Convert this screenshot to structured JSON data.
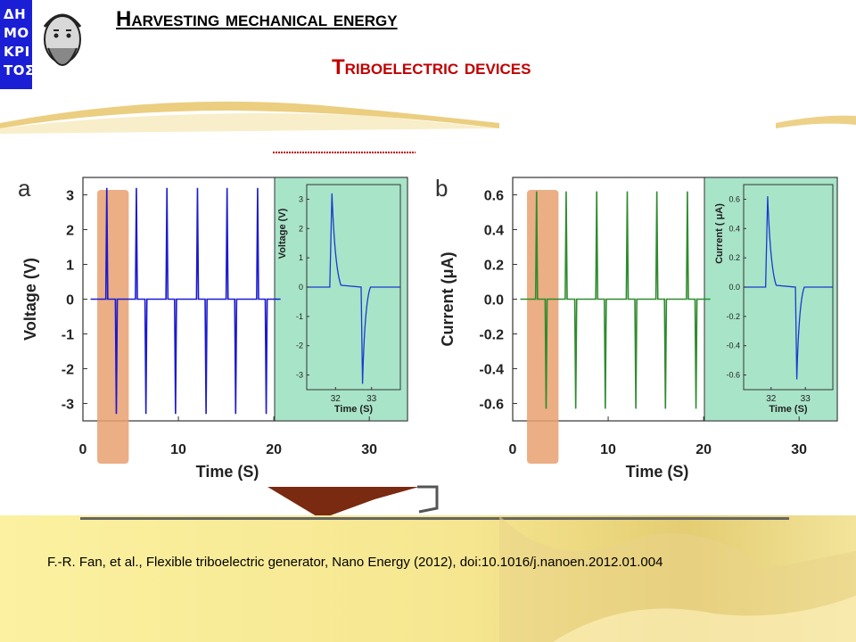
{
  "header": {
    "title": "Harvesting mechanical energy",
    "subtitle": "Triboelectric devices",
    "logo_letters": [
      "ΔΗ",
      "ΜΟ",
      "ΚΡΙ",
      "ΤΟΣ"
    ]
  },
  "citation": "F.-R. Fan, et al., Flexible triboelectric generator, Nano Energy (2012), doi:10.1016/j.nanoen.2012.01.004",
  "colors": {
    "logo_blue": "#1a1fd6",
    "subtitle_red": "#c00000",
    "voltage": "#1a1ad0",
    "current": "#2e8b2e",
    "highlight": "#e8a070",
    "inset_bg": "#a8e4c8"
  },
  "chart_data": [
    {
      "panel": "a",
      "type": "line",
      "xlabel": "Time (S)",
      "ylabel": "Voltage (V)",
      "xlim": [
        0,
        34
      ],
      "ylim": [
        -3.5,
        3.5
      ],
      "xticks": [
        0,
        10,
        20,
        30
      ],
      "yticks": [
        3,
        2,
        1,
        0,
        -1,
        -2,
        -3
      ],
      "peak_times": [
        2.5,
        5.6,
        8.8,
        12.0,
        15.1,
        18.3
      ],
      "trough_times": [
        3.5,
        6.6,
        9.7,
        12.9,
        16.0,
        19.2
      ],
      "peak_value": 3.2,
      "trough_value": -3.3,
      "highlight_x": [
        1.5,
        4.8
      ],
      "inset": {
        "xlabel": "Time (S)",
        "ylabel": "Voltage (V)",
        "xlim": [
          31.2,
          33.8
        ],
        "ylim": [
          -3.5,
          3.5
        ],
        "xticks": [
          32,
          33
        ],
        "yticks": [
          3,
          2,
          1,
          0,
          -1,
          -2,
          -3
        ],
        "peak": [
          31.9,
          3.2
        ],
        "trough": [
          32.75,
          -3.3
        ]
      }
    },
    {
      "panel": "b",
      "type": "line",
      "xlabel": "Time (S)",
      "ylabel": "Current (μA)",
      "xlim": [
        0,
        34
      ],
      "ylim": [
        -0.7,
        0.7
      ],
      "xticks": [
        0,
        10,
        20,
        30
      ],
      "yticks": [
        0.6,
        0.4,
        0.2,
        0.0,
        -0.2,
        -0.4,
        -0.6
      ],
      "ytick_labels": [
        "0.6",
        "0.4",
        "0.2",
        "0.0",
        "-0.2",
        "-0.4",
        "-0.6"
      ],
      "peak_times": [
        2.5,
        5.6,
        8.8,
        12.0,
        15.1,
        18.3
      ],
      "trough_times": [
        3.5,
        6.6,
        9.7,
        12.9,
        16.0,
        19.2
      ],
      "peak_value": 0.62,
      "trough_value": -0.63,
      "highlight_x": [
        1.5,
        4.8
      ],
      "inset": {
        "xlabel": "Time (S)",
        "ylabel": "Current ( μA)",
        "xlim": [
          31.2,
          33.8
        ],
        "ylim": [
          -0.7,
          0.7
        ],
        "xticks": [
          32,
          33
        ],
        "yticks": [
          0.6,
          0.4,
          0.2,
          0.0,
          -0.2,
          -0.4,
          -0.6
        ],
        "ytick_labels": [
          "0.6",
          "0.4",
          "0.2",
          "0.0",
          "-0.2",
          "-0.4",
          "-0.6"
        ],
        "peak": [
          31.9,
          0.62
        ],
        "trough": [
          32.75,
          -0.63
        ]
      }
    }
  ]
}
